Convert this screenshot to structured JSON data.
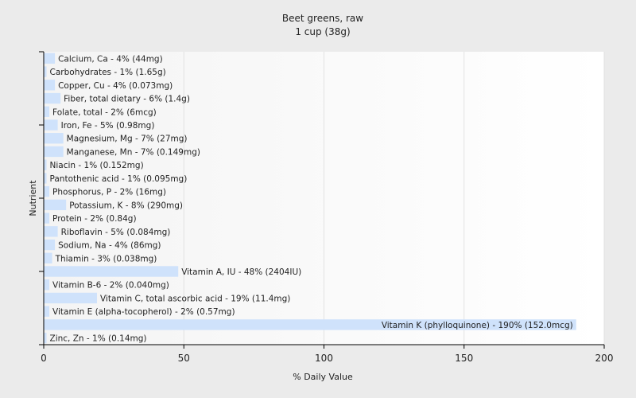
{
  "chart_data": {
    "type": "bar",
    "orientation": "horizontal",
    "title": "Beet greens, raw",
    "subtitle": "1 cup (38g)",
    "xlabel": "% Daily Value",
    "ylabel": "Nutrient",
    "xlim": [
      0,
      200
    ],
    "xticks": [
      0,
      50,
      100,
      150,
      200
    ],
    "grid": true,
    "bar_color": "#cfe2fb",
    "categories": [
      "Calcium, Ca",
      "Carbohydrates",
      "Copper, Cu",
      "Fiber, total dietary",
      "Folate, total",
      "Iron, Fe",
      "Magnesium, Mg",
      "Manganese, Mn",
      "Niacin",
      "Pantothenic acid",
      "Phosphorus, P",
      "Potassium, K",
      "Protein",
      "Riboflavin",
      "Sodium, Na",
      "Thiamin",
      "Vitamin A, IU",
      "Vitamin B-6",
      "Vitamin C, total ascorbic acid",
      "Vitamin E (alpha-tocopherol)",
      "Vitamin K (phylloquinone)",
      "Zinc, Zn"
    ],
    "values": [
      4,
      1,
      4,
      6,
      2,
      5,
      7,
      7,
      1,
      1,
      2,
      8,
      2,
      5,
      4,
      3,
      48,
      2,
      19,
      2,
      190,
      1
    ],
    "labels": [
      "Calcium, Ca - 4% (44mg)",
      "Carbohydrates - 1% (1.65g)",
      "Copper, Cu - 4% (0.073mg)",
      "Fiber, total dietary - 6% (1.4g)",
      "Folate, total - 2% (6mcg)",
      "Iron, Fe - 5% (0.98mg)",
      "Magnesium, Mg - 7% (27mg)",
      "Manganese, Mn - 7% (0.149mg)",
      "Niacin - 1% (0.152mg)",
      "Pantothenic acid - 1% (0.095mg)",
      "Phosphorus, P - 2% (16mg)",
      "Potassium, K - 8% (290mg)",
      "Protein - 2% (0.84g)",
      "Riboflavin - 5% (0.084mg)",
      "Sodium, Na - 4% (86mg)",
      "Thiamin - 3% (0.038mg)",
      "Vitamin A, IU - 48% (2404IU)",
      "Vitamin B-6 - 2% (0.040mg)",
      "Vitamin C, total ascorbic acid - 19% (11.4mg)",
      "Vitamin E (alpha-tocopherol) - 2% (0.57mg)",
      "Vitamin K (phylloquinone) - 190% (152.0mcg)",
      "Zinc, Zn - 1% (0.14mg)"
    ]
  }
}
